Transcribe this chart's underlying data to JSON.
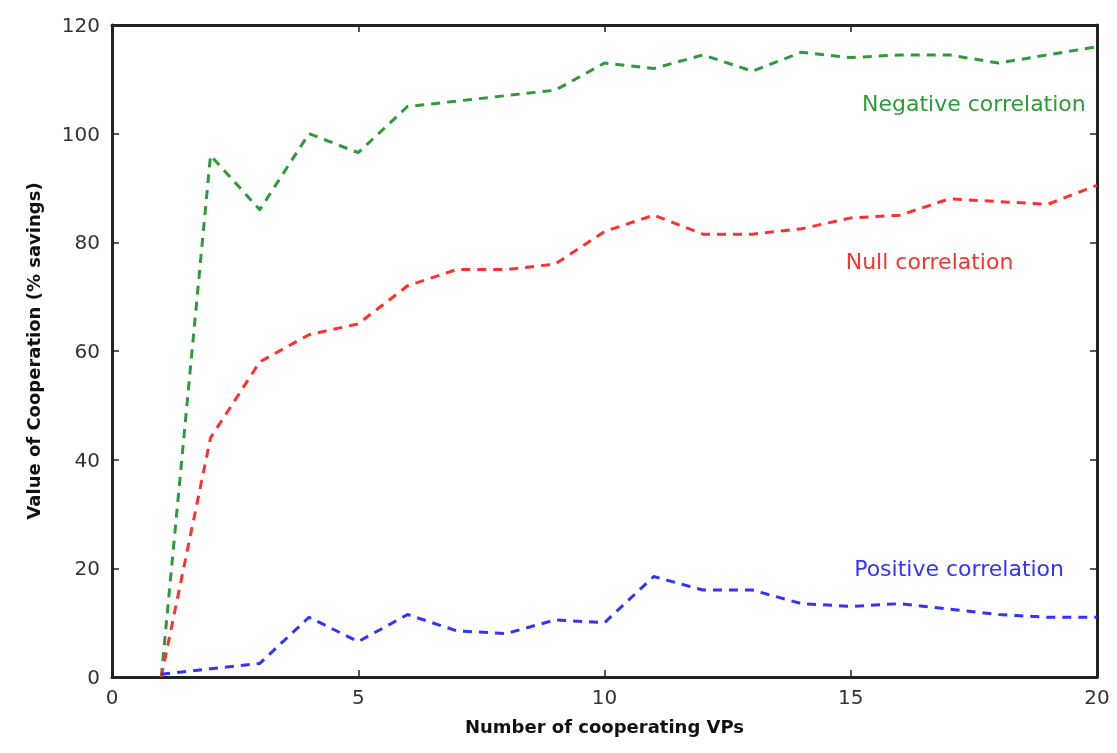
{
  "chart_data": {
    "type": "line",
    "xlabel": "Number of cooperating VPs",
    "ylabel": "Value of Cooperation (% savings)",
    "x": [
      1,
      2,
      3,
      4,
      5,
      6,
      7,
      8,
      9,
      10,
      11,
      12,
      13,
      14,
      15,
      16,
      17,
      18,
      19,
      20
    ],
    "series": [
      {
        "name": "Negative correlation",
        "color": "#2e9a3a",
        "values": [
          0,
          96,
          86,
          100,
          96.5,
          105,
          106,
          107,
          108,
          113,
          112,
          114.5,
          111.5,
          115,
          114,
          114.5,
          114.5,
          113,
          114.5,
          116
        ]
      },
      {
        "name": "Null correlation",
        "color": "#ff3030",
        "values": [
          0,
          44,
          58,
          63,
          65,
          72,
          75,
          75,
          76,
          82,
          85,
          81.5,
          81.5,
          82.5,
          84.5,
          85,
          88,
          87.5,
          87,
          90.5
        ]
      },
      {
        "name": "Positive correlation",
        "color": "#3333ff",
        "values": [
          0.5,
          1.5,
          2.5,
          11,
          6.5,
          11.5,
          8.5,
          8,
          10.5,
          10,
          18.5,
          16,
          16,
          13.5,
          13,
          13.5,
          12.5,
          11.5,
          11,
          11
        ]
      }
    ],
    "xlim": [
      0,
      20
    ],
    "xticks": [
      0,
      5,
      10,
      15,
      20
    ],
    "ylim": [
      0,
      120
    ],
    "yticks": [
      0,
      20,
      40,
      60,
      80,
      100,
      120
    ],
    "grid": false,
    "legend": false,
    "marker": "none",
    "line_style": "dashed"
  }
}
